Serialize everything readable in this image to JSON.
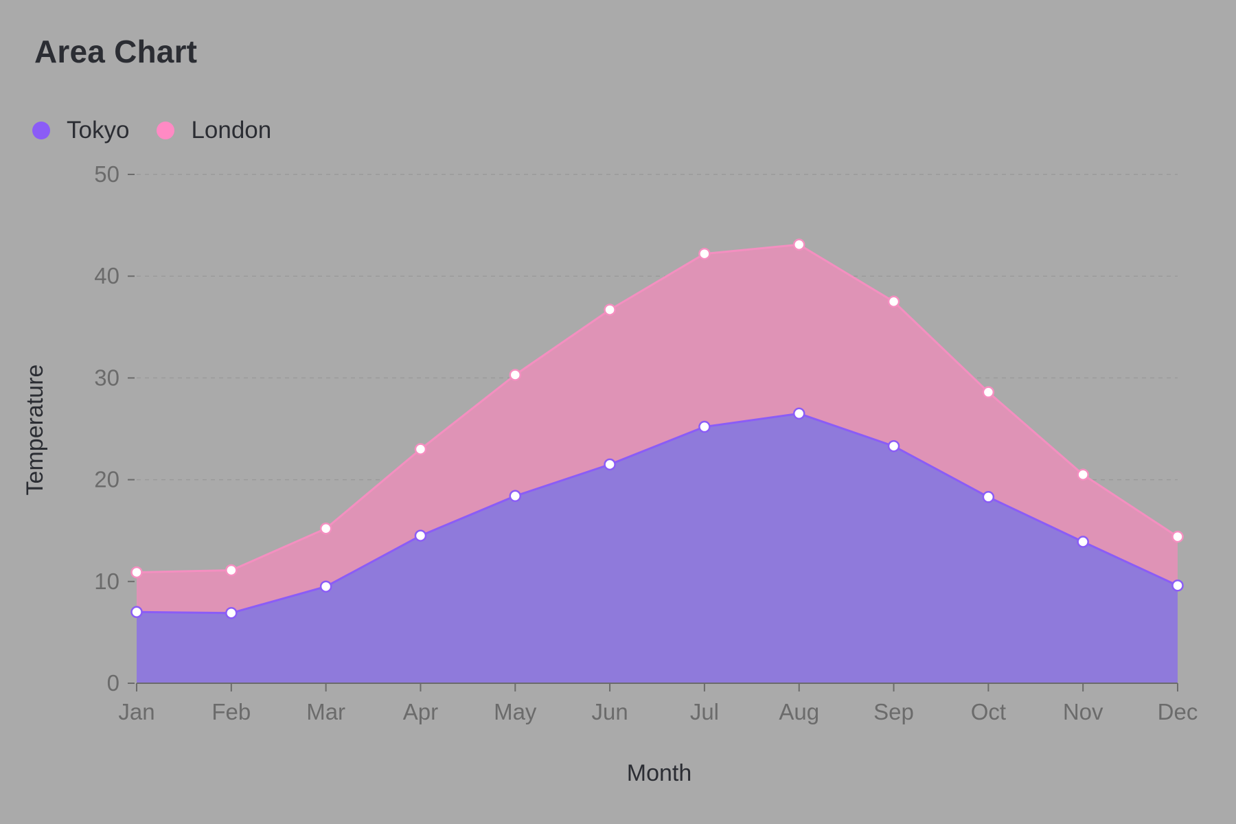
{
  "chart_data": {
    "type": "area",
    "title": "Area Chart",
    "xlabel": "Month",
    "ylabel": "Temperature",
    "categories": [
      "Jan",
      "Feb",
      "Mar",
      "Apr",
      "May",
      "Jun",
      "Jul",
      "Aug",
      "Sep",
      "Oct",
      "Nov",
      "Dec"
    ],
    "ylim": [
      0,
      50
    ],
    "yticks": [
      0,
      10,
      20,
      30,
      40,
      50
    ],
    "stacked": true,
    "grid": "horizontal dashed",
    "legend_position": "top-left",
    "series": [
      {
        "name": "Tokyo",
        "color": "#8b5cf6",
        "values": [
          7.0,
          6.9,
          9.5,
          14.5,
          18.4,
          21.5,
          25.2,
          26.5,
          23.3,
          18.3,
          13.9,
          9.6
        ]
      },
      {
        "name": "London",
        "color": "#f48fc0",
        "values": [
          3.9,
          4.2,
          5.7,
          8.5,
          11.9,
          15.2,
          17.0,
          16.6,
          14.2,
          10.3,
          6.6,
          4.8
        ]
      }
    ]
  },
  "colors": {
    "background": "#aaaaaa",
    "tokyo_fill": "#8f7adb",
    "london_fill": "#df93b6",
    "tokyo_line": "#8b5cf6",
    "london_line": "#f48fc0"
  }
}
